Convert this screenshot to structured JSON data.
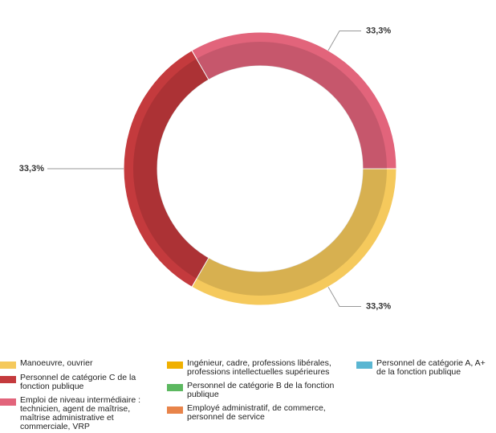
{
  "chart_data": {
    "type": "pie",
    "categories": [
      "Manoeuvre, ouvrier",
      "Personnel de catégorie C de la fonction publique",
      "Emploi de niveau intermédiaire : technicien, agent de maîtrise, maîtrise administrative et commerciale, VRP",
      "Ingénieur, cadre, professions libérales, professions intellectuelles supérieures",
      "Personnel de catégorie B de la fonction publique",
      "Employé administratif, de commerce, personnel de service",
      "Personnel de catégorie A, A+ de la fonction publique"
    ],
    "values": [
      33.3,
      33.3,
      33.3,
      0,
      0,
      0,
      0
    ],
    "value_labels": [
      "33,3%",
      "33,3%",
      "33,3%",
      null,
      null,
      null,
      null
    ],
    "colors": [
      "#f5c95c",
      "#c43a3d",
      "#e2647b",
      "#f0b000",
      "#5cb860",
      "#e8844a",
      "#5ab6d2"
    ]
  }
}
